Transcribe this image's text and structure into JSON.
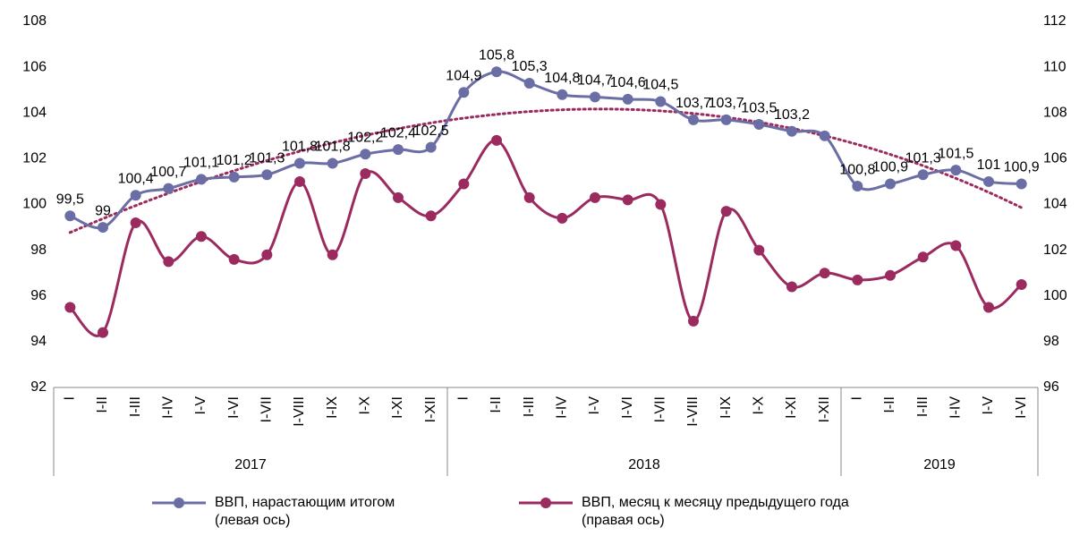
{
  "chart_data": {
    "type": "line",
    "categories": [
      "I",
      "I-II",
      "I-III",
      "I-IV",
      "I-V",
      "I-VI",
      "I-VII",
      "I-VIII",
      "I-IX",
      "I-X",
      "I-XI",
      "I-XII",
      "I",
      "I-II",
      "I-III",
      "I-IV",
      "I-V",
      "I-VI",
      "I-VII",
      "I-VIII",
      "I-IX",
      "I-X",
      "I-XI",
      "I-XII",
      "I",
      "I-II",
      "I-III",
      "I-IV",
      "I-V",
      "I-VI"
    ],
    "groups": [
      "2017",
      "2018",
      "2019"
    ],
    "series": [
      {
        "name": "ВВП, нарастающим итогом\n(левая ось)",
        "color": "#6b6ea5",
        "axis": "y",
        "values": [
          99.5,
          99,
          100.4,
          100.7,
          101.1,
          101.2,
          101.3,
          101.8,
          101.8,
          102.2,
          102.4,
          102.5,
          104.9,
          105.8,
          105.3,
          104.8,
          104.7,
          104.6,
          104.5,
          103.7,
          103.7,
          103.5,
          103.2,
          103.0,
          100.8,
          100.9,
          101.3,
          101.5,
          101,
          100.9
        ],
        "value_labels": [
          "99,5",
          "99",
          "100,4",
          "100,7",
          "101,1",
          "101,2",
          "101,3",
          "101,8",
          "101,8",
          "102,2",
          "102,4",
          "102,5",
          "104,9",
          "105,8",
          "105,3",
          "104,8",
          "104,7",
          "104,6",
          "104,5",
          "103,7",
          "103,7",
          "103,5",
          "103,2",
          null,
          "100,8",
          "100,9",
          "101,3",
          "101,5",
          "101",
          "100,9"
        ]
      },
      {
        "name": "ВВП, месяц к месяцу предыдущего года\n(правая ось)",
        "color": "#9b2a5f",
        "axis": "y2",
        "values": [
          99.5,
          98.4,
          103.2,
          101.5,
          102.6,
          101.6,
          101.8,
          105.0,
          101.8,
          105.35,
          104.3,
          103.5,
          104.9,
          106.8,
          104.3,
          103.4,
          104.3,
          104.2,
          104.0,
          98.9,
          103.7,
          102.0,
          100.4,
          101.0,
          100.7,
          100.9,
          101.7,
          102.2,
          99.5,
          100.5
        ]
      }
    ],
    "trendline": true,
    "ylim": [
      92,
      108
    ],
    "yticks": [
      92,
      94,
      96,
      98,
      100,
      102,
      104,
      106,
      108
    ],
    "y2lim": [
      96,
      112
    ],
    "y2ticks": [
      96,
      98,
      100,
      102,
      104,
      106,
      108,
      110,
      112
    ],
    "legend": "bottom"
  }
}
